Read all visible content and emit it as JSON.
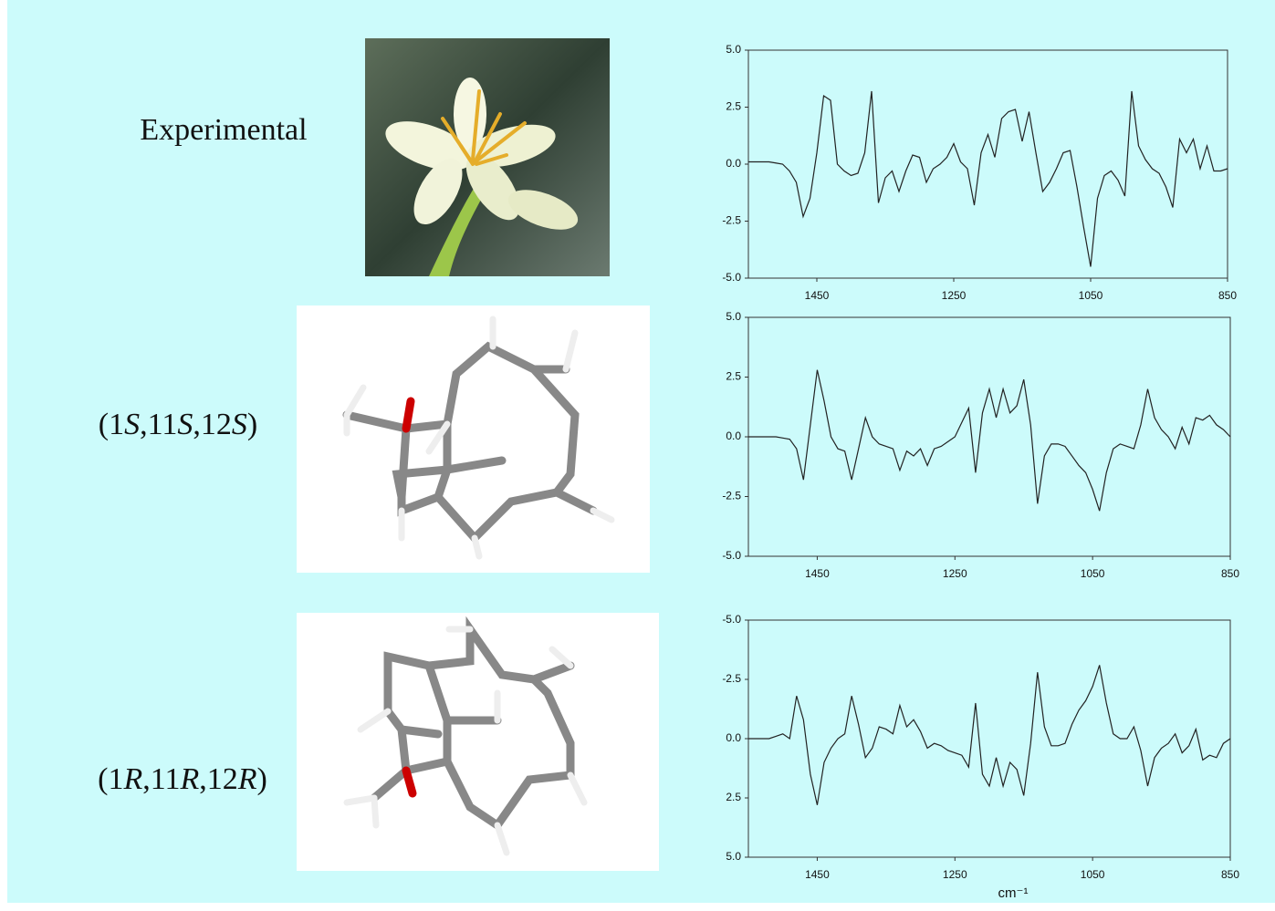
{
  "chart_data": [
    {
      "type": "line",
      "title": "Experimental",
      "x": [
        1550,
        1540,
        1530,
        1520,
        1510,
        1500,
        1490,
        1480,
        1470,
        1460,
        1450,
        1440,
        1430,
        1420,
        1410,
        1400,
        1390,
        1380,
        1370,
        1360,
        1350,
        1340,
        1330,
        1320,
        1310,
        1300,
        1290,
        1280,
        1270,
        1260,
        1250,
        1240,
        1230,
        1220,
        1210,
        1200,
        1190,
        1180,
        1170,
        1160,
        1150,
        1140,
        1130,
        1120,
        1110,
        1100,
        1090,
        1080,
        1070,
        1060,
        1050,
        1040,
        1030,
        1020,
        1010,
        1000,
        990,
        980,
        970,
        960,
        950,
        940,
        930,
        920,
        910,
        900,
        890,
        880,
        870,
        860,
        850
      ],
      "values": [
        0.1,
        0.1,
        0.1,
        0.1,
        0.05,
        0.0,
        -0.3,
        -0.8,
        -2.3,
        -1.5,
        0.5,
        3.0,
        2.8,
        0.0,
        -0.3,
        -0.5,
        -0.4,
        0.5,
        3.2,
        -1.7,
        -0.6,
        -0.3,
        -1.2,
        -0.3,
        0.4,
        0.3,
        -0.8,
        -0.2,
        0.0,
        0.3,
        0.9,
        0.1,
        -0.2,
        -1.8,
        0.5,
        1.3,
        0.3,
        2.0,
        2.3,
        2.4,
        1.0,
        2.3,
        0.5,
        -1.2,
        -0.8,
        -0.2,
        0.5,
        0.6,
        -1.0,
        -2.8,
        -4.5,
        -1.5,
        -0.5,
        -0.3,
        -0.7,
        -1.4,
        3.2,
        0.8,
        0.2,
        -0.2,
        -0.4,
        -1.0,
        -1.9,
        1.1,
        0.5,
        1.1,
        -0.2,
        0.8,
        -0.3,
        -0.3,
        -0.2
      ],
      "color": "#222222",
      "xlim": [
        1550,
        850
      ],
      "xticks": [
        1450,
        1250,
        1050,
        850
      ],
      "ylim": [
        -5,
        5
      ],
      "yticks": [
        {
          "value": -5,
          "label": "-5.0"
        },
        -2.5,
        {
          "value": 0,
          "label": "0.0"
        },
        2.5,
        {
          "value": 5,
          "label": "5.0"
        }
      ]
    },
    {
      "type": "line",
      "title": "(1S,11S,12S)",
      "x": [
        1550,
        1540,
        1530,
        1520,
        1510,
        1500,
        1490,
        1480,
        1470,
        1460,
        1450,
        1440,
        1430,
        1420,
        1410,
        1400,
        1390,
        1380,
        1370,
        1360,
        1350,
        1340,
        1330,
        1320,
        1310,
        1300,
        1290,
        1280,
        1270,
        1260,
        1250,
        1240,
        1230,
        1220,
        1210,
        1200,
        1190,
        1180,
        1170,
        1160,
        1150,
        1140,
        1130,
        1120,
        1110,
        1100,
        1090,
        1080,
        1070,
        1060,
        1050,
        1040,
        1030,
        1020,
        1010,
        1000,
        990,
        980,
        970,
        960,
        950,
        940,
        930,
        920,
        910,
        900,
        890,
        880,
        870,
        860,
        850
      ],
      "values": [
        0,
        0,
        0,
        0,
        0,
        -0.05,
        -0.1,
        -0.5,
        -1.8,
        0.5,
        2.8,
        1.5,
        0.0,
        -0.5,
        -0.6,
        -1.8,
        -0.5,
        0.8,
        0.0,
        -0.3,
        -0.4,
        -0.5,
        -1.4,
        -0.6,
        -0.8,
        -0.5,
        -1.2,
        -0.5,
        -0.4,
        -0.2,
        0.0,
        0.6,
        1.2,
        -1.5,
        1.0,
        2.0,
        0.8,
        2.0,
        1.0,
        1.3,
        2.4,
        0.5,
        -2.8,
        -0.8,
        -0.3,
        -0.3,
        -0.4,
        -0.8,
        -1.2,
        -1.5,
        -2.2,
        -3.1,
        -1.5,
        -0.5,
        -0.3,
        -0.4,
        -0.5,
        0.5,
        2.0,
        0.8,
        0.3,
        0.0,
        -0.5,
        0.4,
        -0.3,
        0.8,
        0.7,
        0.9,
        0.5,
        0.3,
        0.0
      ],
      "color": "#222222",
      "xlim": [
        1550,
        850
      ],
      "xticks": [
        1450,
        1250,
        1050,
        850
      ],
      "ylim": [
        -5,
        5
      ],
      "yticks": [
        {
          "value": -5,
          "label": "-5.0"
        },
        -2.5,
        {
          "value": 0,
          "label": "0.0"
        },
        2.5,
        {
          "value": 5,
          "label": "5.0"
        }
      ]
    },
    {
      "type": "line",
      "title": "(1R,11R,12R)",
      "x_label": "cm⁻¹",
      "x": [
        1550,
        1540,
        1530,
        1520,
        1510,
        1500,
        1490,
        1480,
        1470,
        1460,
        1450,
        1440,
        1430,
        1420,
        1410,
        1400,
        1390,
        1380,
        1370,
        1360,
        1350,
        1340,
        1330,
        1320,
        1310,
        1300,
        1290,
        1280,
        1270,
        1260,
        1250,
        1240,
        1230,
        1220,
        1210,
        1200,
        1190,
        1180,
        1170,
        1160,
        1150,
        1140,
        1130,
        1120,
        1110,
        1100,
        1090,
        1080,
        1070,
        1060,
        1050,
        1040,
        1030,
        1020,
        1010,
        1000,
        990,
        980,
        970,
        960,
        950,
        940,
        930,
        920,
        910,
        900,
        890,
        880,
        870,
        860,
        850
      ],
      "values": [
        0,
        0,
        0,
        0,
        -0.1,
        -0.2,
        0,
        -1.8,
        -0.8,
        1.5,
        2.8,
        1.0,
        0.4,
        0.0,
        -0.2,
        -1.8,
        -0.6,
        0.8,
        0.4,
        -0.5,
        -0.4,
        -0.2,
        -1.4,
        -0.5,
        -0.8,
        -0.3,
        0.4,
        0.2,
        0.3,
        0.5,
        0.6,
        0.7,
        1.2,
        -1.5,
        1.5,
        2.0,
        0.8,
        2.0,
        1.0,
        1.3,
        2.4,
        0.2,
        -2.8,
        -0.5,
        0.3,
        0.3,
        0.2,
        -0.6,
        -1.2,
        -1.6,
        -2.2,
        -3.1,
        -1.5,
        -0.2,
        0.0,
        0.0,
        -0.5,
        0.5,
        2.0,
        0.8,
        0.4,
        0.2,
        -0.2,
        0.6,
        0.3,
        -0.4,
        0.9,
        0.7,
        0.8,
        0.2,
        0.0
      ],
      "color": "#222222",
      "xlim": [
        1550,
        850
      ],
      "xticks": [
        1450,
        1250,
        1050,
        850
      ],
      "ylim": [
        5,
        -5
      ],
      "yticks": [
        {
          "value": 5,
          "label": "5.0"
        },
        2.5,
        {
          "value": 0,
          "label": "0.0"
        },
        -2.5,
        {
          "value": -5,
          "label": "-5.0"
        }
      ]
    }
  ]
}
